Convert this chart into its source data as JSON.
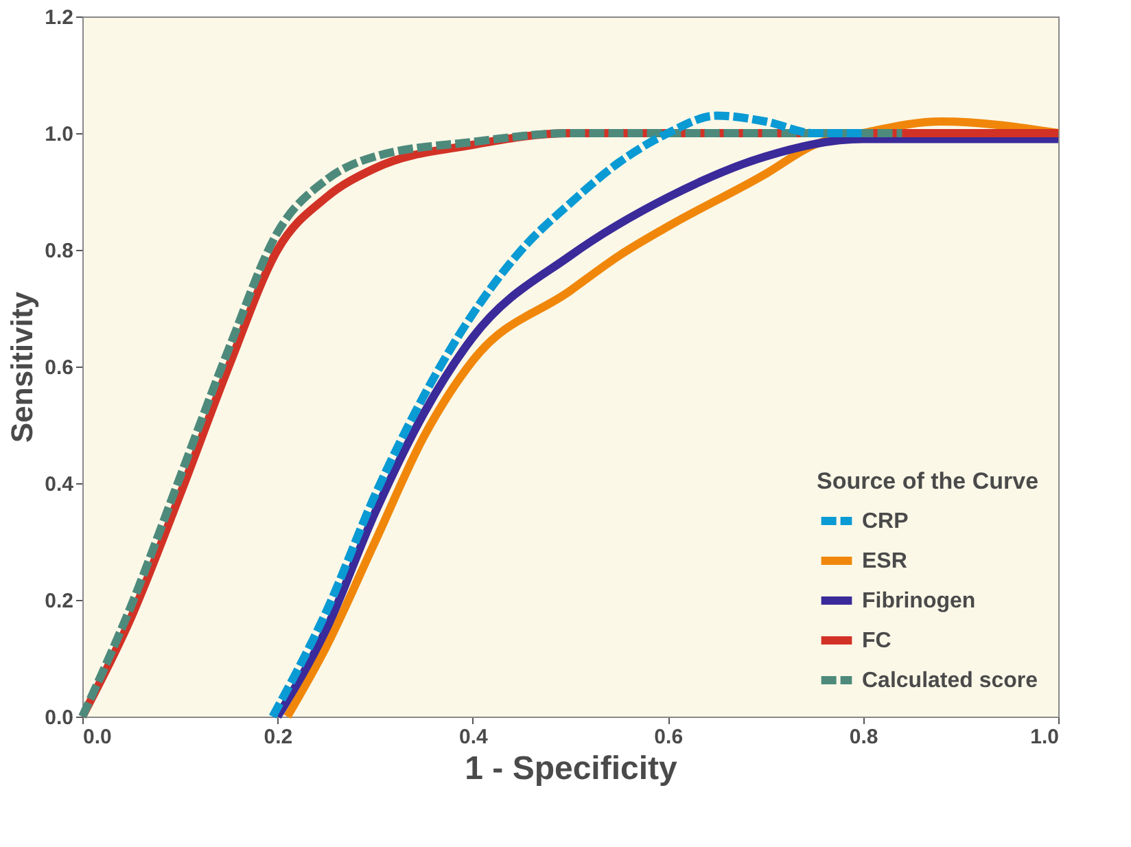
{
  "chart_data": {
    "type": "line",
    "xlabel": "1 - Specificity",
    "ylabel": "Sensitivity",
    "legend_title": "Source of the Curve",
    "legend": "bottom right",
    "grid": false,
    "marker": "none",
    "xlim": [
      0,
      1
    ],
    "ylim": [
      0,
      1.2
    ],
    "xticks": [
      {
        "value": 0,
        "label": "0.0"
      },
      0.2,
      0.4,
      0.6,
      0.8,
      {
        "value": 1,
        "label": "1.0"
      }
    ],
    "yticks": [
      {
        "value": 0,
        "label": "0.0"
      },
      0.2,
      0.4,
      0.6,
      0.8,
      {
        "value": 1,
        "label": "1.0"
      },
      1.2
    ],
    "series": [
      {
        "name": "CRP",
        "color": "#0a9ad4",
        "line_style": "dashed",
        "x": [
          0.195,
          0.25,
          0.3,
          0.35,
          0.4,
          0.45,
          0.5,
          0.55,
          0.6,
          0.65,
          0.7,
          0.75,
          0.8
        ],
        "values": [
          0,
          0.18,
          0.38,
          0.55,
          0.69,
          0.8,
          0.88,
          0.95,
          1.0,
          1.03,
          1.02,
          1.0,
          1.0
        ]
      },
      {
        "name": "ESR",
        "color": "#f0870a",
        "line_style": "solid",
        "x": [
          0.21,
          0.25,
          0.3,
          0.35,
          0.4,
          0.5,
          0.55,
          0.6,
          0.7,
          0.75,
          0.8,
          0.88,
          1.0
        ],
        "values": [
          0,
          0.12,
          0.3,
          0.48,
          0.61,
          0.73,
          0.79,
          0.84,
          0.93,
          0.98,
          1.0,
          1.02,
          1.0
        ]
      },
      {
        "name": "Fibrinogen",
        "color": "#3a2a9a",
        "line_style": "solid",
        "x": [
          0.2,
          0.25,
          0.3,
          0.35,
          0.4,
          0.5,
          0.6,
          0.7,
          0.8,
          1.0
        ],
        "values": [
          0,
          0.15,
          0.35,
          0.52,
          0.65,
          0.79,
          0.89,
          0.96,
          0.99,
          0.99
        ]
      },
      {
        "name": "FC",
        "color": "#d23226",
        "line_style": "solid",
        "x": [
          0,
          0.05,
          0.1,
          0.15,
          0.2,
          0.25,
          0.3,
          0.4,
          0.5,
          0.6,
          0.8,
          1.0
        ],
        "values": [
          0,
          0.17,
          0.38,
          0.6,
          0.8,
          0.89,
          0.94,
          0.98,
          1.0,
          1.0,
          1.0,
          1.0
        ]
      },
      {
        "name": "Calculated score",
        "color": "#4e8a7c",
        "line_style": "dashed",
        "x": [
          0,
          0.05,
          0.1,
          0.15,
          0.2,
          0.25,
          0.3,
          0.4,
          0.5,
          0.6,
          0.7,
          0.84
        ],
        "values": [
          0,
          0.19,
          0.41,
          0.63,
          0.83,
          0.92,
          0.96,
          0.985,
          1.0,
          1.0,
          1.0,
          1.0
        ]
      }
    ]
  }
}
